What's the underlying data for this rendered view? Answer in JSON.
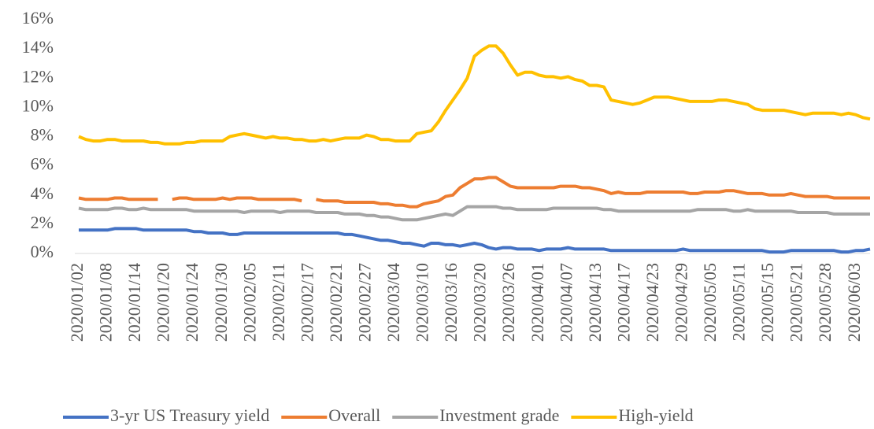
{
  "chart_data": {
    "type": "line",
    "categories": [
      "2020/01/02",
      null,
      null,
      null,
      "2020/01/08",
      null,
      null,
      null,
      "2020/01/14",
      null,
      null,
      null,
      "2020/01/20",
      null,
      null,
      null,
      "2020/01/24",
      null,
      null,
      null,
      "2020/01/30",
      null,
      null,
      null,
      "2020/02/05",
      null,
      null,
      null,
      "2020/02/11",
      null,
      null,
      null,
      "2020/02/17",
      null,
      null,
      null,
      "2020/02/21",
      null,
      null,
      null,
      "2020/02/27",
      null,
      null,
      null,
      "2020/03/04",
      null,
      null,
      null,
      "2020/03/10",
      null,
      null,
      null,
      "2020/03/16",
      null,
      null,
      null,
      "2020/03/20",
      null,
      null,
      null,
      "2020/03/26",
      null,
      null,
      null,
      "2020/04/01",
      null,
      null,
      null,
      "2020/04/07",
      null,
      null,
      null,
      "2020/04/13",
      null,
      null,
      null,
      "2020/04/17",
      null,
      null,
      null,
      "2020/04/23",
      null,
      null,
      null,
      "2020/04/29",
      null,
      null,
      null,
      "2020/05/05",
      null,
      null,
      null,
      "2020/05/11",
      null,
      null,
      null,
      "2020/05/15",
      null,
      null,
      null,
      "2020/05/21",
      null,
      null,
      null,
      "2020/05/28",
      null,
      null,
      null,
      "2020/06/03",
      null,
      null
    ],
    "series": [
      {
        "name": "3-yr US Treasury yield",
        "color": "#4472c4",
        "values": [
          1.6,
          1.6,
          1.6,
          1.6,
          1.6,
          1.7,
          1.7,
          1.7,
          1.7,
          1.6,
          1.6,
          1.6,
          1.6,
          1.6,
          1.6,
          1.6,
          1.5,
          1.5,
          1.4,
          1.4,
          1.4,
          1.3,
          1.3,
          1.4,
          1.4,
          1.4,
          1.4,
          1.4,
          1.4,
          1.4,
          1.4,
          1.4,
          1.4,
          1.4,
          1.4,
          1.4,
          1.4,
          1.3,
          1.3,
          1.2,
          1.1,
          1.0,
          0.9,
          0.9,
          0.8,
          0.7,
          0.7,
          0.6,
          0.5,
          0.7,
          0.7,
          0.6,
          0.6,
          0.5,
          0.6,
          0.7,
          0.6,
          0.4,
          0.3,
          0.4,
          0.4,
          0.3,
          0.3,
          0.3,
          0.2,
          0.3,
          0.3,
          0.3,
          0.4,
          0.3,
          0.3,
          0.3,
          0.3,
          0.3,
          0.2,
          0.2,
          0.2,
          0.2,
          0.2,
          0.2,
          0.2,
          0.2,
          0.2,
          0.2,
          0.3,
          0.2,
          0.2,
          0.2,
          0.2,
          0.2,
          0.2,
          0.2,
          0.2,
          0.2,
          0.2,
          0.2,
          0.1,
          0.1,
          0.1,
          0.2,
          0.2,
          0.2,
          0.2,
          0.2,
          0.2,
          0.2,
          0.1,
          0.1,
          0.2,
          0.2,
          0.3
        ]
      },
      {
        "name": "Overall",
        "color": "#ed7d31",
        "values": [
          3.8,
          3.7,
          3.7,
          3.7,
          3.7,
          3.8,
          3.8,
          3.7,
          3.7,
          3.7,
          3.7,
          3.7,
          null,
          3.7,
          3.8,
          3.8,
          3.7,
          3.7,
          3.7,
          3.7,
          3.8,
          3.7,
          3.8,
          3.8,
          3.8,
          3.7,
          3.7,
          3.7,
          3.7,
          3.7,
          3.7,
          3.6,
          null,
          3.7,
          3.6,
          3.6,
          3.6,
          3.5,
          3.5,
          3.5,
          3.5,
          3.5,
          3.4,
          3.4,
          3.3,
          3.3,
          3.2,
          3.2,
          3.4,
          3.5,
          3.6,
          3.9,
          4.0,
          4.5,
          4.8,
          5.1,
          5.1,
          5.2,
          5.2,
          4.9,
          4.6,
          4.5,
          4.5,
          4.5,
          4.5,
          4.5,
          4.5,
          4.6,
          4.6,
          4.6,
          4.5,
          4.5,
          4.4,
          4.3,
          4.1,
          4.2,
          4.1,
          4.1,
          4.1,
          4.2,
          4.2,
          4.2,
          4.2,
          4.2,
          4.2,
          4.1,
          4.1,
          4.2,
          4.2,
          4.2,
          4.3,
          4.3,
          4.2,
          4.1,
          4.1,
          4.1,
          4.0,
          4.0,
          4.0,
          4.1,
          4.0,
          3.9,
          3.9,
          3.9,
          3.9,
          3.8,
          3.8,
          3.8,
          3.8,
          3.8,
          3.8
        ]
      },
      {
        "name": "Investment grade",
        "color": "#a5a5a5",
        "values": [
          3.1,
          3.0,
          3.0,
          3.0,
          3.0,
          3.1,
          3.1,
          3.0,
          3.0,
          3.1,
          3.0,
          3.0,
          3.0,
          3.0,
          3.0,
          3.0,
          2.9,
          2.9,
          2.9,
          2.9,
          2.9,
          2.9,
          2.9,
          2.8,
          2.9,
          2.9,
          2.9,
          2.9,
          2.8,
          2.9,
          2.9,
          2.9,
          2.9,
          2.8,
          2.8,
          2.8,
          2.8,
          2.7,
          2.7,
          2.7,
          2.6,
          2.6,
          2.5,
          2.5,
          2.4,
          2.3,
          2.3,
          2.3,
          2.4,
          2.5,
          2.6,
          2.7,
          2.6,
          2.9,
          3.2,
          3.2,
          3.2,
          3.2,
          3.2,
          3.1,
          3.1,
          3.0,
          3.0,
          3.0,
          3.0,
          3.0,
          3.1,
          3.1,
          3.1,
          3.1,
          3.1,
          3.1,
          3.1,
          3.0,
          3.0,
          2.9,
          2.9,
          2.9,
          2.9,
          2.9,
          2.9,
          2.9,
          2.9,
          2.9,
          2.9,
          2.9,
          3.0,
          3.0,
          3.0,
          3.0,
          3.0,
          2.9,
          2.9,
          3.0,
          2.9,
          2.9,
          2.9,
          2.9,
          2.9,
          2.9,
          2.8,
          2.8,
          2.8,
          2.8,
          2.8,
          2.7,
          2.7,
          2.7,
          2.7,
          2.7,
          2.7
        ]
      },
      {
        "name": "High-yield",
        "color": "#ffc000",
        "values": [
          8.0,
          7.8,
          7.7,
          7.7,
          7.8,
          7.8,
          7.7,
          7.7,
          7.7,
          7.7,
          7.6,
          7.6,
          7.5,
          7.5,
          7.5,
          7.6,
          7.6,
          7.7,
          7.7,
          7.7,
          7.7,
          8.0,
          8.1,
          8.2,
          8.1,
          8.0,
          7.9,
          8.0,
          7.9,
          7.9,
          7.8,
          7.8,
          7.7,
          7.7,
          7.8,
          7.7,
          7.8,
          7.9,
          7.9,
          7.9,
          8.1,
          8.0,
          7.8,
          7.8,
          7.7,
          7.7,
          7.7,
          8.2,
          8.3,
          8.4,
          9.0,
          9.8,
          10.5,
          11.2,
          12.0,
          13.5,
          13.9,
          14.2,
          14.2,
          13.7,
          12.9,
          12.2,
          12.4,
          12.4,
          12.2,
          12.1,
          12.1,
          12.0,
          12.1,
          11.9,
          11.8,
          11.5,
          11.5,
          11.4,
          10.5,
          10.4,
          10.3,
          10.2,
          10.3,
          10.5,
          10.7,
          10.7,
          10.7,
          10.6,
          10.5,
          10.4,
          10.4,
          10.4,
          10.4,
          10.5,
          10.5,
          10.4,
          10.3,
          10.2,
          9.9,
          9.8,
          9.8,
          9.8,
          9.8,
          9.7,
          9.6,
          9.5,
          9.6,
          9.6,
          9.6,
          9.6,
          9.5,
          9.6,
          9.5,
          9.3,
          9.2
        ]
      }
    ],
    "ylim": [
      0,
      16
    ],
    "yticks": [
      {
        "value": 0,
        "label": "0%"
      },
      {
        "value": 2,
        "label": "2%"
      },
      {
        "value": 4,
        "label": "4%"
      },
      {
        "value": 6,
        "label": "6%"
      },
      {
        "value": 8,
        "label": "8%"
      },
      {
        "value": 10,
        "label": "10%"
      },
      {
        "value": 12,
        "label": "12%"
      },
      {
        "value": 14,
        "label": "14%"
      },
      {
        "value": 16,
        "label": "16%"
      }
    ],
    "grid": false,
    "legend": "bottom"
  }
}
